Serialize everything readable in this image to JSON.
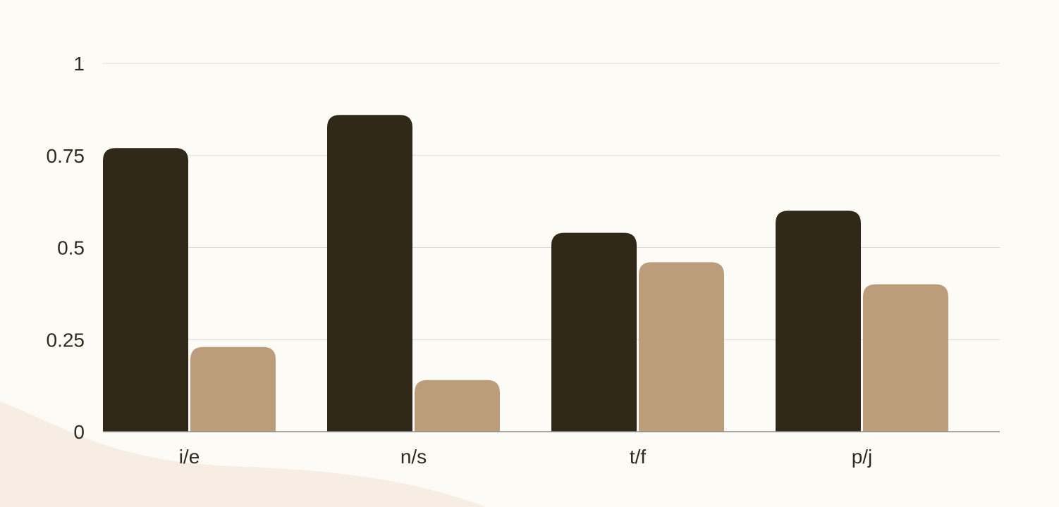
{
  "background_color": "#fdfbf6",
  "decoration_color": "#f7ede3",
  "gridline_color": "#dddbd5",
  "axis_color": "#8c8a84",
  "text_color": "#2f2a1c",
  "chart_data": {
    "type": "bar",
    "categories": [
      "i/e",
      "n/s",
      "t/f",
      "p/j"
    ],
    "series": [
      {
        "color": "#302819",
        "values": [
          0.77,
          0.86,
          0.54,
          0.6
        ]
      },
      {
        "color": "#bb9c7b",
        "values": [
          0.23,
          0.14,
          0.46,
          0.4
        ]
      }
    ],
    "yticks": [
      "0",
      "0.25",
      "0.5",
      "0.75",
      "1"
    ],
    "ylim": [
      0,
      1
    ],
    "grid": true,
    "legend": "none",
    "title": "",
    "xlabel": "",
    "ylabel": ""
  }
}
